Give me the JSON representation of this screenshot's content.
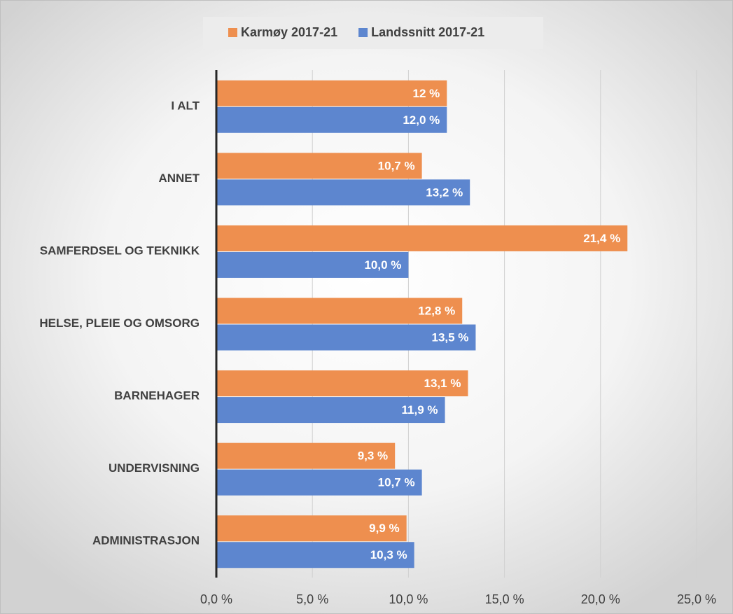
{
  "chart_data": {
    "type": "hbar",
    "categories": [
      "I ALT",
      "ANNET",
      "SAMFERDSEL OG TEKNIKK",
      "HELSE, PLEIE OG OMSORG",
      "BARNEHAGER",
      "UNDERVISNING",
      "ADMINISTRASJON"
    ],
    "series": [
      {
        "name": "Karmøy 2017-21",
        "color": "#ee8f4f",
        "values": [
          12,
          10.7,
          21.4,
          12.8,
          13.1,
          9.3,
          9.9
        ],
        "value_labels": [
          "12 %",
          "10,7 %",
          "21,4 %",
          "12,8 %",
          "13,1 %",
          "9,3 %",
          "9,9 %"
        ]
      },
      {
        "name": "Landssnitt 2017-21",
        "color": "#5d86cf",
        "values": [
          12.0,
          13.2,
          10.0,
          13.5,
          11.9,
          10.7,
          10.3
        ],
        "value_labels": [
          "12,0 %",
          "13,2 %",
          "10,0 %",
          "13,5 %",
          "11,9 %",
          "10,7 %",
          "10,3 %"
        ]
      }
    ],
    "xlim": [
      0,
      25
    ],
    "xticks": [
      {
        "value": 0,
        "label": "0,0 %"
      },
      {
        "value": 5,
        "label": "5,0 %"
      },
      {
        "value": 10,
        "label": "10,0 %"
      },
      {
        "value": 15,
        "label": "15,0 %"
      },
      {
        "value": 20,
        "label": "20,0 %"
      },
      {
        "value": 25,
        "label": "25,0 %"
      }
    ],
    "grid": true,
    "legend": "top"
  }
}
